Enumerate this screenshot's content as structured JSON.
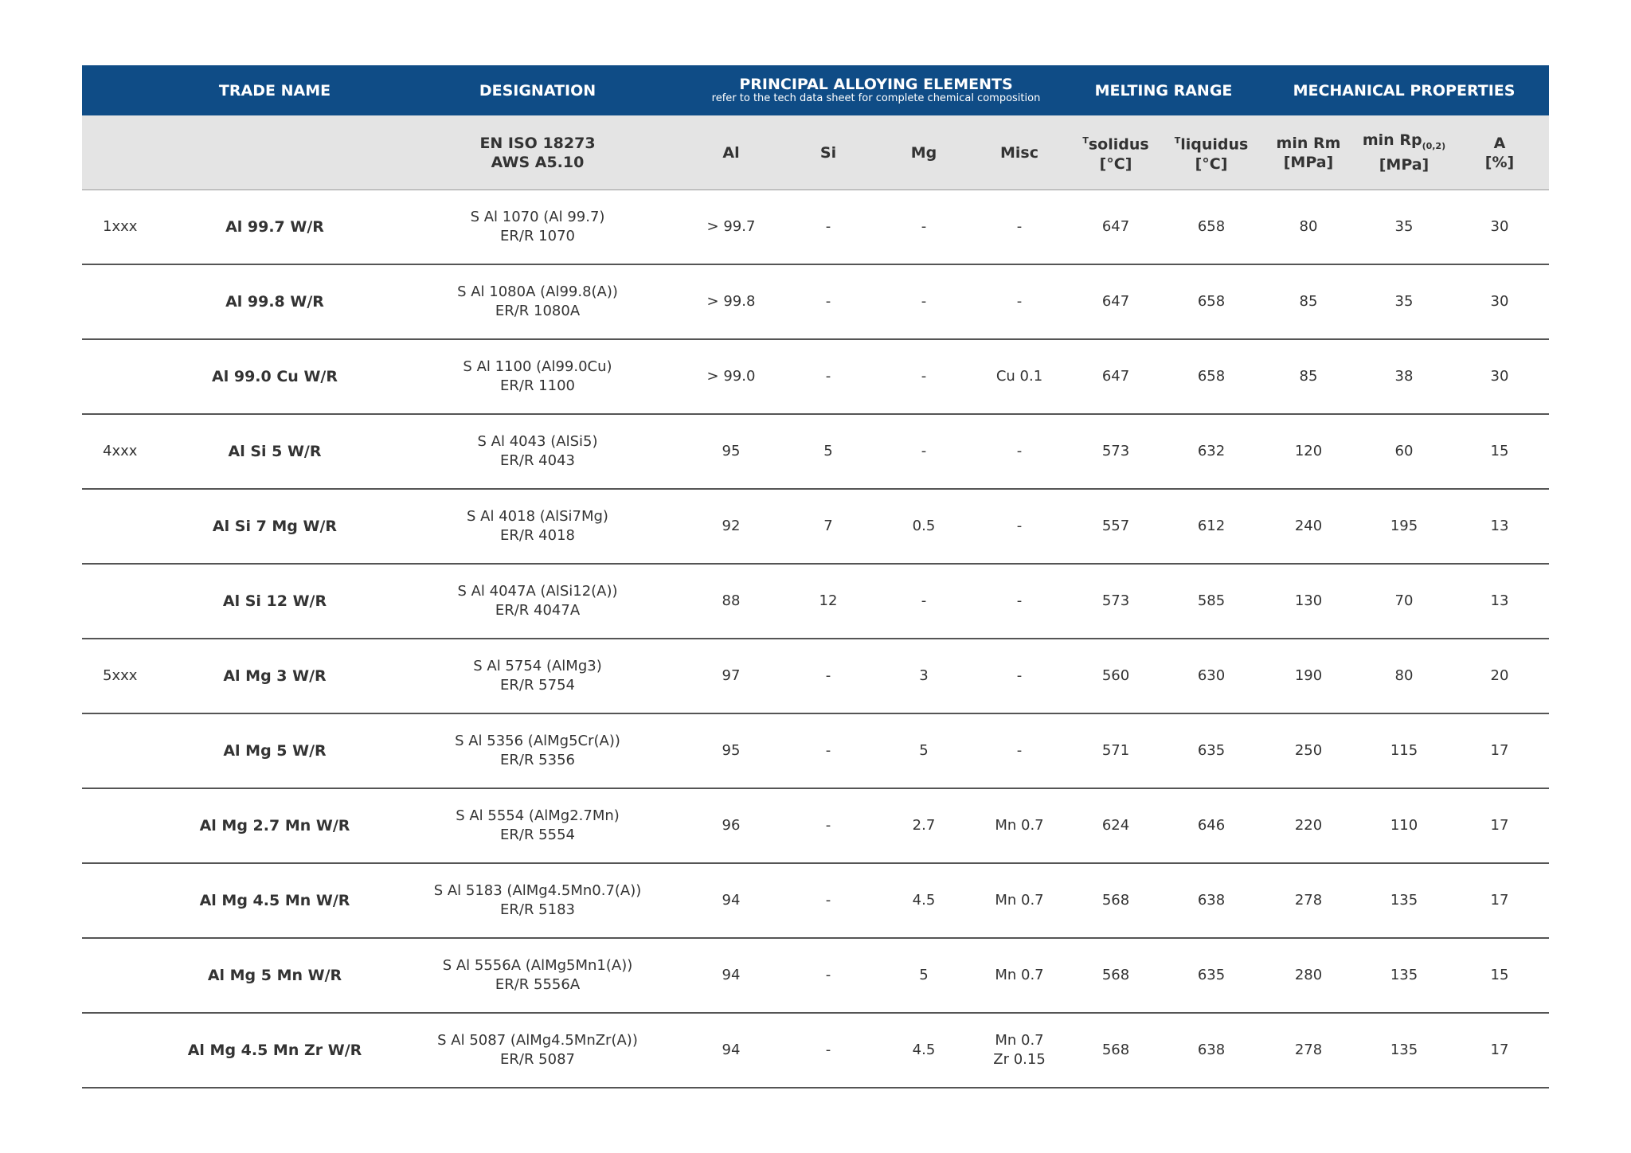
{
  "header": {
    "trade_name": "TRADE NAME",
    "designation": "DESIGNATION",
    "alloying": "PRINCIPAL ALLOYING ELEMENTS",
    "alloying_note": "refer to the tech data sheet for complete chemical composition",
    "melting": "MELTING RANGE",
    "mechanical": "MECHANICAL PROPERTIES"
  },
  "subheader": {
    "designation": [
      "EN ISO 18273",
      "AWS A5.10"
    ],
    "al": "Al",
    "si": "Si",
    "mg": "Mg",
    "misc": "Misc",
    "solidus": {
      "sup": "T",
      "text": "solidus",
      "unit": "[°C]"
    },
    "liquidus": {
      "sup": "T",
      "text": "liquidus",
      "unit": "[°C]"
    },
    "rm": [
      "min Rm",
      "[MPa]"
    ],
    "rp": {
      "text": "min Rp",
      "sub": "(0,2)",
      "unit": "[MPa]"
    },
    "a": [
      "A",
      "[%]"
    ]
  },
  "rows": [
    {
      "series": "1xxx",
      "trade_name": "Al 99.7 W/R",
      "designation": [
        "S Al 1070 (Al 99.7)",
        "ER/R 1070"
      ],
      "al": "> 99.7",
      "si": "-",
      "mg": "-",
      "misc": "-",
      "solidus": 647,
      "liquidus": 658,
      "rm": 80,
      "rp": 35,
      "a": 30
    },
    {
      "trade_name": "Al 99.8 W/R",
      "designation": [
        "S Al 1080A (Al99.8(A))",
        "ER/R 1080A"
      ],
      "al": "> 99.8",
      "si": "-",
      "mg": "-",
      "misc": "-",
      "solidus": 647,
      "liquidus": 658,
      "rm": 85,
      "rp": 35,
      "a": 30
    },
    {
      "trade_name": "Al 99.0 Cu W/R",
      "designation": [
        "S Al 1100 (Al99.0Cu)",
        "ER/R 1100"
      ],
      "al": "> 99.0",
      "si": "-",
      "mg": "-",
      "misc": "Cu 0.1",
      "solidus": 647,
      "liquidus": 658,
      "rm": 85,
      "rp": 38,
      "a": 30
    },
    {
      "series": "4xxx",
      "trade_name": "Al Si 5 W/R",
      "designation": [
        "S Al 4043 (AlSi5)",
        "ER/R 4043"
      ],
      "al": 95,
      "si": 5,
      "mg": "-",
      "misc": "-",
      "solidus": 573,
      "liquidus": 632,
      "rm": 120,
      "rp": 60,
      "a": 15
    },
    {
      "trade_name": "Al Si 7 Mg W/R",
      "designation": [
        "S Al 4018 (AlSi7Mg)",
        "ER/R 4018"
      ],
      "al": 92,
      "si": 7,
      "mg": 0.5,
      "misc": "-",
      "solidus": 557,
      "liquidus": 612,
      "rm": 240,
      "rp": 195,
      "a": 13
    },
    {
      "trade_name": "Al Si 12 W/R",
      "designation": [
        "S Al 4047A (AlSi12(A))",
        "ER/R 4047A"
      ],
      "al": 88,
      "si": 12,
      "mg": "-",
      "misc": "-",
      "solidus": 573,
      "liquidus": 585,
      "rm": 130,
      "rp": 70,
      "a": 13
    },
    {
      "series": "5xxx",
      "trade_name": "Al Mg 3 W/R",
      "designation": [
        "S Al 5754 (AlMg3)",
        "ER/R 5754"
      ],
      "al": 97,
      "si": "-",
      "mg": 3,
      "misc": "-",
      "solidus": 560,
      "liquidus": 630,
      "rm": 190,
      "rp": 80,
      "a": 20
    },
    {
      "trade_name": "Al Mg 5 W/R",
      "designation": [
        "S Al 5356 (AlMg5Cr(A))",
        "ER/R 5356"
      ],
      "al": 95,
      "si": "-",
      "mg": 5,
      "misc": "-",
      "solidus": 571,
      "liquidus": 635,
      "rm": 250,
      "rp": 115,
      "a": 17
    },
    {
      "trade_name": "Al Mg 2.7 Mn W/R",
      "designation": [
        "S Al 5554 (AlMg2.7Mn)",
        "ER/R 5554"
      ],
      "al": 96,
      "si": "-",
      "mg": 2.7,
      "misc": "Mn 0.7",
      "solidus": 624,
      "liquidus": 646,
      "rm": 220,
      "rp": 110,
      "a": 17
    },
    {
      "trade_name": "Al Mg 4.5 Mn W/R",
      "designation": [
        "S Al 5183 (AlMg4.5Mn0.7(A))",
        "ER/R 5183"
      ],
      "al": 94,
      "si": "-",
      "mg": 4.5,
      "misc": "Mn 0.7",
      "solidus": 568,
      "liquidus": 638,
      "rm": 278,
      "rp": 135,
      "a": 17
    },
    {
      "trade_name": "Al Mg 5 Mn W/R",
      "designation": [
        "S Al 5556A (AlMg5Mn1(A))",
        "ER/R 5556A"
      ],
      "al": 94,
      "si": "-",
      "mg": 5,
      "misc": "Mn 0.7",
      "solidus": 568,
      "liquidus": 635,
      "rm": 280,
      "rp": 135,
      "a": 15
    },
    {
      "trade_name": "Al Mg 4.5 Mn Zr W/R",
      "designation": [
        "S Al 5087 (AlMg4.5MnZr(A))",
        "ER/R 5087"
      ],
      "al": 94,
      "si": "-",
      "mg": 4.5,
      "misc": [
        "Mn 0.7",
        "Zr 0.15"
      ],
      "solidus": 568,
      "liquidus": 638,
      "rm": 278,
      "rp": 135,
      "a": 17
    }
  ]
}
